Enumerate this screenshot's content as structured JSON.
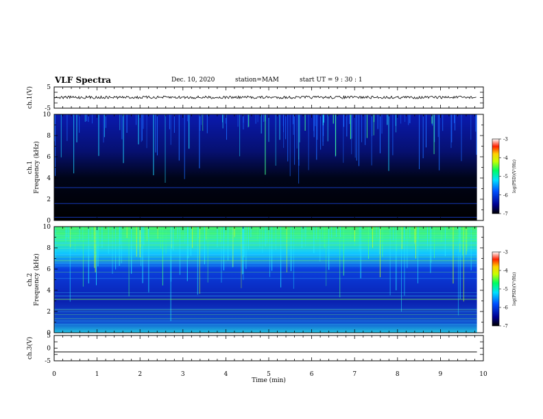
{
  "header": {
    "title": "VLF Spectra",
    "date": "Dec. 10, 2020",
    "station": "station=MAM",
    "start": "start  UT  =   9 : 30 : 1"
  },
  "chart_data": [
    {
      "type": "line",
      "panel": "ch1-waveform",
      "ylabel": "ch.1(V)",
      "ylim": [
        -5,
        5
      ],
      "yticks": [
        "5",
        "-5"
      ],
      "xlim": [
        0,
        10
      ],
      "series": [
        {
          "x": [
            0,
            9.85
          ],
          "y": [
            0.1,
            0.1
          ]
        }
      ]
    },
    {
      "type": "heatmap",
      "panel": "ch1-spectrogram",
      "ylabel": "ch.1\nFrequency (kHz)",
      "ylim": [
        0,
        10
      ],
      "yticks": [
        "0",
        "2",
        "4",
        "6",
        "8",
        "10"
      ],
      "xlim": [
        0,
        10
      ],
      "data_extent_min": 9.85,
      "colorbar": {
        "label": "log(PSD)(V²/Hz)",
        "range": [
          -7,
          -3
        ],
        "ticks": [
          "-3",
          "-4",
          "-5",
          "-6",
          "-7"
        ]
      }
    },
    {
      "type": "heatmap",
      "panel": "ch2-spectrogram",
      "ylabel": "ch.2\nFrequency (kHz)",
      "ylim": [
        0,
        10
      ],
      "yticks": [
        "0",
        "2",
        "4",
        "6",
        "8",
        "10"
      ],
      "xlim": [
        0,
        10
      ],
      "data_extent_min": 9.85,
      "colorbar": {
        "label": "log(PSD)(V²/Hz)",
        "range": [
          -7,
          -3
        ],
        "ticks": [
          "-3",
          "-4",
          "-5",
          "-6",
          "-7"
        ]
      }
    },
    {
      "type": "line",
      "panel": "ch3-waveform",
      "ylabel": "ch.3(V)",
      "ylim": [
        -5,
        5
      ],
      "yticks": [
        "5",
        "0",
        "-5"
      ],
      "xlim": [
        0,
        10
      ],
      "xlabel": "Time (min)",
      "xticks": [
        "0",
        "1",
        "2",
        "3",
        "4",
        "5",
        "6",
        "7",
        "8",
        "9",
        "10"
      ],
      "series": [
        {
          "x": [
            0,
            9.85
          ],
          "y": [
            -1.5,
            -1.5
          ]
        }
      ]
    }
  ]
}
